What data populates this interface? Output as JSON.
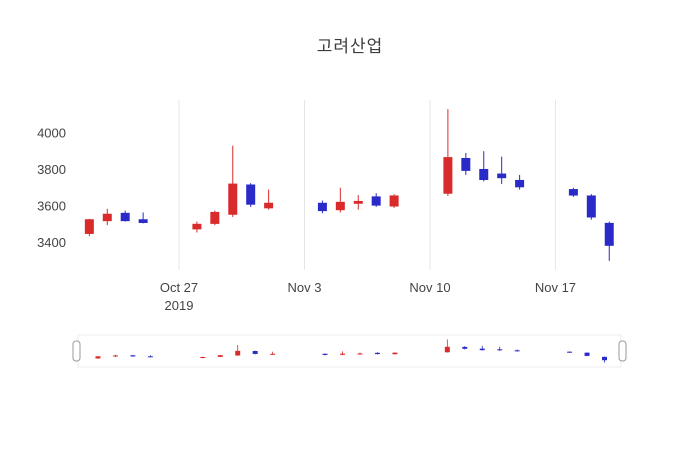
{
  "title": "고려산업",
  "colors": {
    "up": "#d92b2b",
    "down": "#2a2ac8",
    "grid": "#e6e6e6",
    "axis_text": "#444444",
    "background": "#ffffff",
    "handle_fill": "#ffffff",
    "handle_border": "#999999"
  },
  "chart_data": {
    "type": "candlestick",
    "title": "고려산업",
    "legend": "none",
    "grid": "vertical-only",
    "y_ticks": [
      3400,
      3600,
      3800,
      4000
    ],
    "y_range": [
      3250,
      4180
    ],
    "x_range_days": [
      -0.8,
      29.6
    ],
    "x_ticks": [
      {
        "label": "Oct 27",
        "sublabel": "2019",
        "day": 5
      },
      {
        "label": "Nov 3",
        "sublabel": "",
        "day": 12
      },
      {
        "label": "Nov 10",
        "sublabel": "",
        "day": 19
      },
      {
        "label": "Nov 17",
        "sublabel": "",
        "day": 26
      }
    ],
    "candles": [
      {
        "date": "2019-10-22",
        "day": 0,
        "open": 3450,
        "high": 3530,
        "low": 3435,
        "close": 3525
      },
      {
        "date": "2019-10-23",
        "day": 1,
        "open": 3520,
        "high": 3585,
        "low": 3495,
        "close": 3555
      },
      {
        "date": "2019-10-24",
        "day": 2,
        "open": 3560,
        "high": 3575,
        "low": 3515,
        "close": 3520
      },
      {
        "date": "2019-10-25",
        "day": 3,
        "open": 3525,
        "high": 3565,
        "low": 3505,
        "close": 3510
      },
      {
        "date": "2019-10-28",
        "day": 6,
        "open": 3475,
        "high": 3515,
        "low": 3455,
        "close": 3500
      },
      {
        "date": "2019-10-29",
        "day": 7,
        "open": 3505,
        "high": 3575,
        "low": 3495,
        "close": 3565
      },
      {
        "date": "2019-10-30",
        "day": 8,
        "open": 3555,
        "high": 3930,
        "low": 3540,
        "close": 3720
      },
      {
        "date": "2019-10-31",
        "day": 9,
        "open": 3715,
        "high": 3725,
        "low": 3595,
        "close": 3610
      },
      {
        "date": "2019-11-01",
        "day": 10,
        "open": 3590,
        "high": 3690,
        "low": 3580,
        "close": 3615
      },
      {
        "date": "2019-11-04",
        "day": 13,
        "open": 3615,
        "high": 3630,
        "low": 3560,
        "close": 3575
      },
      {
        "date": "2019-11-05",
        "day": 14,
        "open": 3580,
        "high": 3700,
        "low": 3565,
        "close": 3620
      },
      {
        "date": "2019-11-06",
        "day": 15,
        "open": 3615,
        "high": 3660,
        "low": 3580,
        "close": 3625
      },
      {
        "date": "2019-11-07",
        "day": 16,
        "open": 3650,
        "high": 3670,
        "low": 3595,
        "close": 3605
      },
      {
        "date": "2019-11-08",
        "day": 17,
        "open": 3600,
        "high": 3665,
        "low": 3590,
        "close": 3655
      },
      {
        "date": "2019-11-11",
        "day": 20,
        "open": 3670,
        "high": 4130,
        "low": 3655,
        "close": 3865
      },
      {
        "date": "2019-11-12",
        "day": 21,
        "open": 3860,
        "high": 3890,
        "low": 3770,
        "close": 3795
      },
      {
        "date": "2019-11-13",
        "day": 22,
        "open": 3800,
        "high": 3900,
        "low": 3735,
        "close": 3745
      },
      {
        "date": "2019-11-14",
        "day": 23,
        "open": 3775,
        "high": 3870,
        "low": 3720,
        "close": 3755
      },
      {
        "date": "2019-11-15",
        "day": 24,
        "open": 3740,
        "high": 3770,
        "low": 3690,
        "close": 3705
      },
      {
        "date": "2019-11-18",
        "day": 27,
        "open": 3690,
        "high": 3700,
        "low": 3650,
        "close": 3660
      },
      {
        "date": "2019-11-19",
        "day": 28,
        "open": 3655,
        "high": 3665,
        "low": 3525,
        "close": 3540
      },
      {
        "date": "2019-11-20",
        "day": 29,
        "open": 3505,
        "high": 3515,
        "low": 3300,
        "close": 3385
      }
    ],
    "rangeslider": {
      "visible": true,
      "handles": 2
    }
  }
}
